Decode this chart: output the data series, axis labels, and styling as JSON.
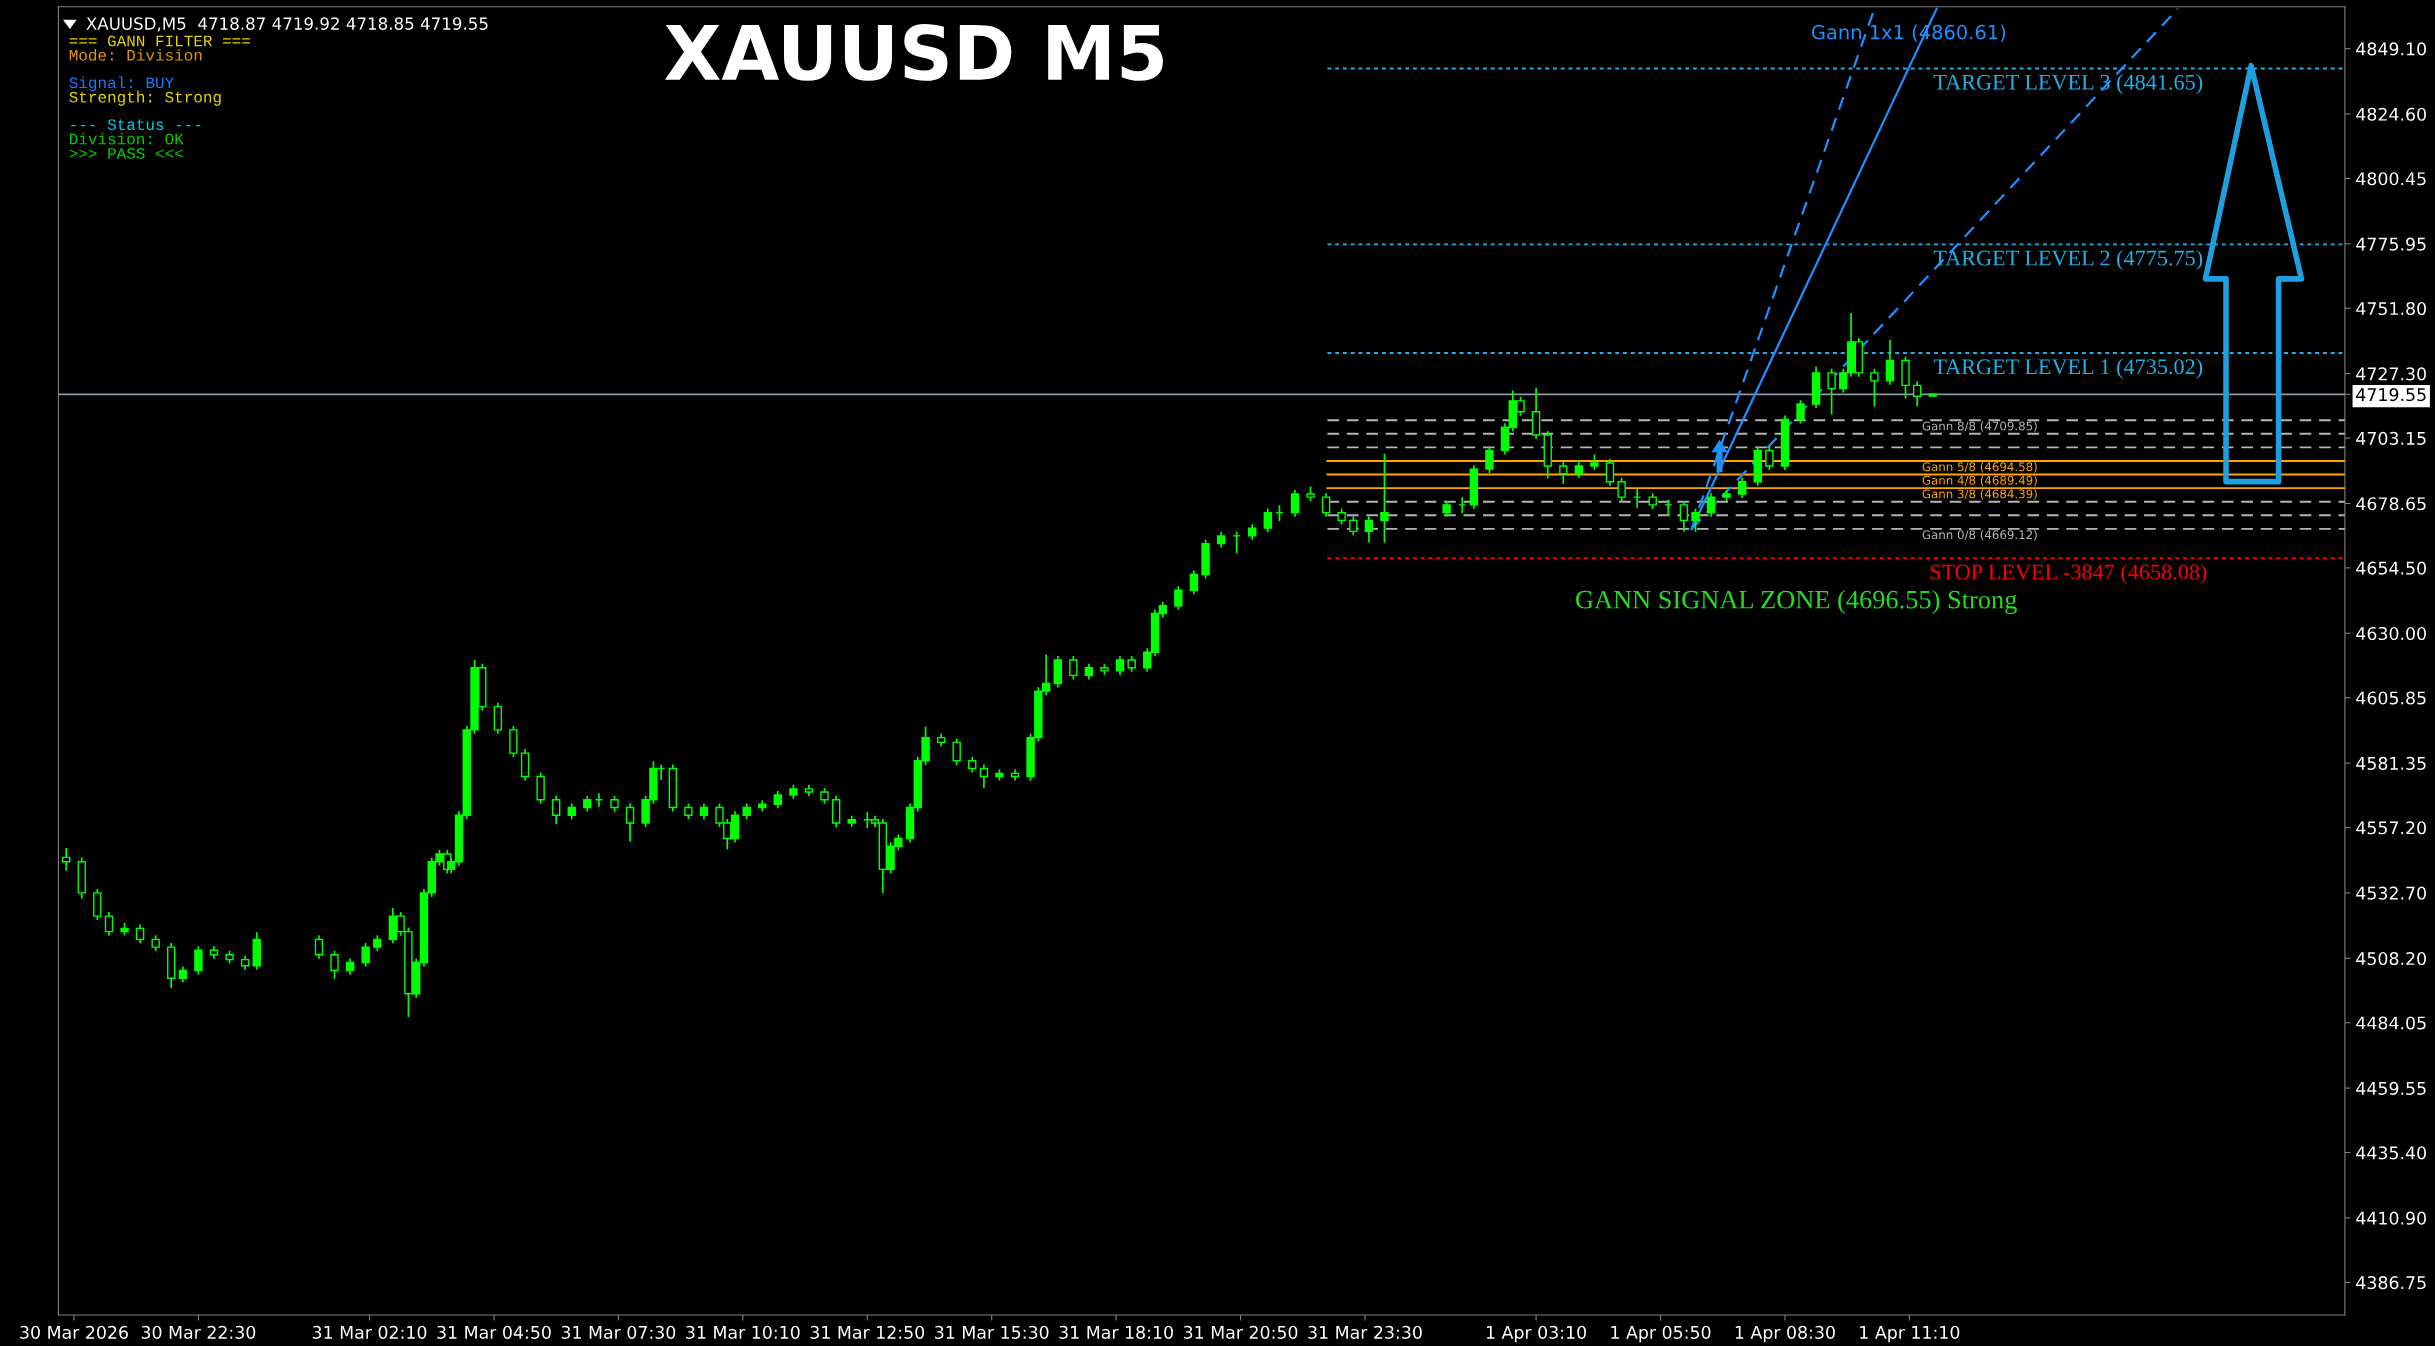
{
  "chart_data": {
    "type": "candlestick",
    "title": "XAUUSD M5",
    "series": [
      {
        "color": "#00ff00",
        "x": [
          "2026-03-30T19:40",
          "2026-03-30T20:00",
          "2026-03-30T20:20",
          "2026-03-30T20:35",
          "2026-03-30T20:55",
          "2026-03-30T21:15",
          "2026-03-30T21:35",
          "2026-03-30T21:55",
          "2026-03-30T22:10",
          "2026-03-30T22:30",
          "2026-03-30T22:50",
          "2026-03-30T23:10",
          "2026-03-30T23:30",
          "2026-03-30T23:45",
          "2026-03-31T01:05",
          "2026-03-31T01:25",
          "2026-03-31T01:45",
          "2026-03-31T02:05",
          "2026-03-31T02:20",
          "2026-03-31T02:40",
          "2026-03-31T02:50",
          "2026-03-31T03:00",
          "2026-03-31T03:10",
          "2026-03-31T03:20",
          "2026-03-31T03:30",
          "2026-03-31T03:40",
          "2026-03-31T03:50",
          "2026-03-31T03:55",
          "2026-03-31T04:05",
          "2026-03-31T04:15",
          "2026-03-31T04:25",
          "2026-03-31T04:35",
          "2026-03-31T04:55",
          "2026-03-31T05:15",
          "2026-03-31T05:30",
          "2026-03-31T05:50",
          "2026-03-31T06:10",
          "2026-03-31T06:30",
          "2026-03-31T06:50",
          "2026-03-31T07:05",
          "2026-03-31T07:25",
          "2026-03-31T07:45",
          "2026-03-31T08:05",
          "2026-03-31T08:15",
          "2026-03-31T08:25",
          "2026-03-31T08:40",
          "2026-03-31T09:00",
          "2026-03-31T09:20",
          "2026-03-31T09:40",
          "2026-03-31T09:50",
          "2026-03-31T10:00",
          "2026-03-31T10:15",
          "2026-03-31T10:35",
          "2026-03-31T10:55",
          "2026-03-31T11:15",
          "2026-03-31T11:35",
          "2026-03-31T11:55",
          "2026-03-31T12:10",
          "2026-03-31T12:30",
          "2026-03-31T12:50",
          "2026-03-31T13:00",
          "2026-03-31T13:10",
          "2026-03-31T13:20",
          "2026-03-31T13:30",
          "2026-03-31T13:45",
          "2026-03-31T13:55",
          "2026-03-31T14:05",
          "2026-03-31T14:25",
          "2026-03-31T14:45",
          "2026-03-31T15:05",
          "2026-03-31T15:20",
          "2026-03-31T15:40",
          "2026-03-31T16:00",
          "2026-03-31T16:20",
          "2026-03-31T16:30",
          "2026-03-31T16:40",
          "2026-03-31T16:55",
          "2026-03-31T17:15",
          "2026-03-31T17:35",
          "2026-03-31T17:55",
          "2026-03-31T18:15",
          "2026-03-31T18:30",
          "2026-03-31T18:50",
          "2026-03-31T19:00",
          "2026-03-31T19:10",
          "2026-03-31T19:30",
          "2026-03-31T19:50",
          "2026-03-31T20:05",
          "2026-03-31T20:25",
          "2026-03-31T20:45",
          "2026-03-31T21:05",
          "2026-03-31T21:25",
          "2026-03-31T21:40",
          "2026-03-31T22:00",
          "2026-03-31T22:20",
          "2026-03-31T22:40",
          "2026-03-31T23:00",
          "2026-03-31T23:15",
          "2026-03-31T23:35",
          "2026-03-31T23:55",
          "2026-04-01T01:15",
          "2026-04-01T01:35",
          "2026-04-01T01:50",
          "2026-04-01T02:10",
          "2026-04-01T02:30",
          "2026-04-01T02:40",
          "2026-04-01T02:50",
          "2026-04-01T03:10",
          "2026-04-01T03:25",
          "2026-04-01T03:45",
          "2026-04-01T04:05",
          "2026-04-01T04:25",
          "2026-04-01T04:45",
          "2026-04-01T05:00",
          "2026-04-01T05:20",
          "2026-04-01T05:40",
          "2026-04-01T06:00",
          "2026-04-01T06:20",
          "2026-04-01T06:35",
          "2026-04-01T06:55",
          "2026-04-01T07:15",
          "2026-04-01T07:35",
          "2026-04-01T07:55",
          "2026-04-01T08:10",
          "2026-04-01T08:30",
          "2026-04-01T08:50",
          "2026-04-01T09:10",
          "2026-04-01T09:30",
          "2026-04-01T09:45",
          "2026-04-01T09:55",
          "2026-04-01T10:05",
          "2026-04-01T10:25",
          "2026-04-01T10:45",
          "2026-04-01T11:05",
          "2026-04-01T11:20",
          "2026-04-01T11:40"
        ],
        "ohlc": [
          [
            4546.0,
            4549.5,
            4541.0,
            4544.4
          ],
          [
            4544.4,
            4546.0,
            4530.5,
            4532.7
          ],
          [
            4532.7,
            4534.2,
            4522.5,
            4524.0
          ],
          [
            4524.0,
            4525.5,
            4516.7,
            4518.2
          ],
          [
            4518.2,
            4521.5,
            4516.7,
            4519.4
          ],
          [
            4519.4,
            4520.9,
            4513.8,
            4515.3
          ],
          [
            4515.3,
            4516.8,
            4510.9,
            4512.4
          ],
          [
            4512.4,
            4513.9,
            4497.0,
            4500.7
          ],
          [
            4500.7,
            4505.1,
            4499.2,
            4503.6
          ],
          [
            4503.6,
            4512.7,
            4502.1,
            4511.2
          ],
          [
            4511.2,
            4512.7,
            4508.0,
            4509.5
          ],
          [
            4509.5,
            4511.0,
            4506.2,
            4507.7
          ],
          [
            4507.7,
            4509.2,
            4503.9,
            4505.4
          ],
          [
            4505.4,
            4518.0,
            4503.9,
            4515.3
          ],
          [
            4515.3,
            4516.8,
            4508.0,
            4509.5
          ],
          [
            4509.5,
            4511.0,
            4500.5,
            4503.6
          ],
          [
            4503.6,
            4508.1,
            4502.1,
            4506.6
          ],
          [
            4506.6,
            4513.9,
            4505.1,
            4512.4
          ],
          [
            4512.4,
            4516.8,
            4510.9,
            4515.3
          ],
          [
            4515.3,
            4527.0,
            4513.8,
            4524.0
          ],
          [
            4524.0,
            4525.5,
            4516.7,
            4518.2
          ],
          [
            4518.2,
            4519.7,
            4486.2,
            4494.9
          ],
          [
            4494.9,
            4508.1,
            4493.4,
            4506.6
          ],
          [
            4506.6,
            4534.2,
            4505.1,
            4532.7
          ],
          [
            4532.7,
            4545.9,
            4531.2,
            4544.4
          ],
          [
            4544.4,
            4548.8,
            4542.9,
            4547.3
          ],
          [
            4547.3,
            4548.8,
            4540.0,
            4541.5
          ],
          [
            4541.5,
            4545.9,
            4540.0,
            4544.4
          ],
          [
            4544.4,
            4563.3,
            4542.9,
            4561.8
          ],
          [
            4561.8,
            4595.3,
            4560.3,
            4593.8
          ],
          [
            4593.8,
            4620.0,
            4592.3,
            4617.1
          ],
          [
            4617.1,
            4618.6,
            4601.0,
            4602.5
          ],
          [
            4602.5,
            4604.0,
            4592.3,
            4593.8
          ],
          [
            4593.8,
            4595.3,
            4583.6,
            4585.1
          ],
          [
            4585.1,
            4586.6,
            4574.8,
            4576.3
          ],
          [
            4576.3,
            4577.8,
            4566.1,
            4567.6
          ],
          [
            4567.6,
            4569.1,
            4558.5,
            4561.8
          ],
          [
            4561.8,
            4566.2,
            4560.3,
            4564.7
          ],
          [
            4564.7,
            4569.1,
            4563.2,
            4567.6
          ],
          [
            4567.6,
            4570.0,
            4565.0,
            4567.6
          ],
          [
            4567.6,
            4569.1,
            4563.2,
            4564.7
          ],
          [
            4564.7,
            4566.2,
            4552.0,
            4558.9
          ],
          [
            4558.9,
            4569.1,
            4557.4,
            4567.6
          ],
          [
            4567.6,
            4582.0,
            4566.1,
            4579.3
          ],
          [
            4579.3,
            4580.8,
            4575.0,
            4579.3
          ],
          [
            4579.3,
            4580.8,
            4563.2,
            4564.7
          ],
          [
            4564.7,
            4566.2,
            4560.3,
            4561.8
          ],
          [
            4561.8,
            4566.2,
            4560.3,
            4564.7
          ],
          [
            4564.7,
            4566.2,
            4557.4,
            4558.9
          ],
          [
            4558.9,
            4560.4,
            4549.0,
            4553.1
          ],
          [
            4553.1,
            4563.3,
            4551.6,
            4561.8
          ],
          [
            4561.8,
            4566.2,
            4560.3,
            4564.7
          ],
          [
            4564.7,
            4567.4,
            4563.2,
            4565.9
          ],
          [
            4565.9,
            4570.9,
            4564.4,
            4569.4
          ],
          [
            4569.4,
            4573.2,
            4567.9,
            4571.7
          ],
          [
            4571.7,
            4573.2,
            4569.0,
            4570.5
          ],
          [
            4570.5,
            4572.0,
            4566.1,
            4567.6
          ],
          [
            4567.6,
            4569.1,
            4557.4,
            4558.9
          ],
          [
            4558.9,
            4561.6,
            4557.4,
            4560.1
          ],
          [
            4560.1,
            4563.0,
            4557.0,
            4560.1
          ],
          [
            4560.1,
            4561.6,
            4557.4,
            4558.9
          ],
          [
            4558.9,
            4560.4,
            4532.7,
            4541.5
          ],
          [
            4541.5,
            4551.7,
            4540.0,
            4550.2
          ],
          [
            4550.2,
            4554.6,
            4548.7,
            4553.1
          ],
          [
            4553.1,
            4566.2,
            4551.6,
            4564.7
          ],
          [
            4564.7,
            4583.7,
            4563.2,
            4582.2
          ],
          [
            4582.2,
            4595.0,
            4580.7,
            4590.9
          ],
          [
            4590.9,
            4592.4,
            4587.6,
            4589.1
          ],
          [
            4589.1,
            4590.6,
            4580.7,
            4582.2
          ],
          [
            4582.2,
            4583.7,
            4577.8,
            4579.3
          ],
          [
            4579.3,
            4580.8,
            4572.0,
            4576.3
          ],
          [
            4576.3,
            4579.0,
            4574.8,
            4577.5
          ],
          [
            4577.5,
            4579.0,
            4574.8,
            4576.3
          ],
          [
            4576.3,
            4592.4,
            4574.8,
            4590.9
          ],
          [
            4590.9,
            4609.8,
            4589.4,
            4608.3
          ],
          [
            4608.3,
            4622.0,
            4606.8,
            4611.2
          ],
          [
            4611.2,
            4621.5,
            4609.7,
            4620.0
          ],
          [
            4620.0,
            4621.5,
            4612.7,
            4614.2
          ],
          [
            4614.2,
            4618.6,
            4612.7,
            4617.1
          ],
          [
            4617.1,
            4618.6,
            4614.4,
            4615.9
          ],
          [
            4615.9,
            4621.5,
            4614.4,
            4620.0
          ],
          [
            4620.0,
            4621.5,
            4615.6,
            4617.1
          ],
          [
            4617.1,
            4624.4,
            4615.6,
            4622.9
          ],
          [
            4622.9,
            4638.9,
            4621.4,
            4637.4
          ],
          [
            4637.4,
            4641.8,
            4635.9,
            4640.3
          ],
          [
            4640.3,
            4647.6,
            4638.8,
            4646.1
          ],
          [
            4646.1,
            4653.5,
            4644.6,
            4652.0
          ],
          [
            4652.0,
            4665.1,
            4650.5,
            4663.6
          ],
          [
            4663.6,
            4668.0,
            4662.1,
            4666.5
          ],
          [
            4666.5,
            4668.0,
            4660.0,
            4666.5
          ],
          [
            4666.5,
            4670.9,
            4665.0,
            4669.4
          ],
          [
            4669.4,
            4676.7,
            4667.9,
            4675.2
          ],
          [
            4675.2,
            4678.0,
            4672.0,
            4675.2
          ],
          [
            4675.2,
            4683.7,
            4673.7,
            4682.2
          ],
          [
            4682.2,
            4685.0,
            4679.5,
            4681.0
          ],
          [
            4681.0,
            4682.5,
            4673.7,
            4675.2
          ],
          [
            4675.2,
            4676.7,
            4670.8,
            4672.3
          ],
          [
            4672.3,
            4673.8,
            4666.7,
            4668.2
          ],
          [
            4668.2,
            4673.8,
            4664.0,
            4672.3
          ],
          [
            4672.3,
            4697.3,
            4664.0,
            4675.2
          ],
          [
            4675.2,
            4679.6,
            4673.7,
            4678.1
          ],
          [
            4678.1,
            4681.0,
            4675.0,
            4678.1
          ],
          [
            4678.1,
            4693.0,
            4676.6,
            4691.5
          ],
          [
            4691.5,
            4700.0,
            4690.0,
            4698.5
          ],
          [
            4698.5,
            4708.7,
            4697.0,
            4707.2
          ],
          [
            4707.2,
            4721.0,
            4705.7,
            4717.1
          ],
          [
            4717.1,
            4718.6,
            4711.5,
            4713.0
          ],
          [
            4713.0,
            4722.0,
            4702.8,
            4704.3
          ],
          [
            4704.3,
            4705.8,
            4688.0,
            4692.7
          ],
          [
            4692.7,
            4694.2,
            4686.0,
            4689.8
          ],
          [
            4689.8,
            4695.0,
            4688.3,
            4692.7
          ],
          [
            4692.7,
            4697.0,
            4691.2,
            4693.8
          ],
          [
            4693.8,
            4695.3,
            4685.3,
            4686.8
          ],
          [
            4686.8,
            4688.3,
            4679.5,
            4681.0
          ],
          [
            4681.0,
            4684.0,
            4677.0,
            4681.0
          ],
          [
            4681.0,
            4682.5,
            4676.6,
            4678.1
          ],
          [
            4678.1,
            4680.0,
            4674.0,
            4678.1
          ],
          [
            4678.1,
            4679.6,
            4668.0,
            4672.3
          ],
          [
            4672.3,
            4676.7,
            4668.0,
            4675.2
          ],
          [
            4675.2,
            4682.5,
            4673.7,
            4681.0
          ],
          [
            4681.0,
            4683.7,
            4679.5,
            4682.2
          ],
          [
            4682.2,
            4688.3,
            4680.7,
            4686.8
          ],
          [
            4686.8,
            4700.0,
            4685.3,
            4698.5
          ],
          [
            4698.5,
            4700.0,
            4691.2,
            4692.7
          ],
          [
            4692.7,
            4711.6,
            4691.2,
            4710.1
          ],
          [
            4710.1,
            4717.4,
            4708.6,
            4715.9
          ],
          [
            4715.9,
            4730.0,
            4714.4,
            4727.6
          ],
          [
            4727.6,
            4729.1,
            4712.0,
            4721.7
          ],
          [
            4721.7,
            4729.1,
            4720.2,
            4727.6
          ],
          [
            4727.6,
            4750.0,
            4726.1,
            4739.2
          ],
          [
            4739.2,
            4740.7,
            4726.1,
            4727.6
          ],
          [
            4727.6,
            4729.1,
            4715.0,
            4724.6
          ],
          [
            4724.6,
            4740.0,
            4723.1,
            4732.2
          ],
          [
            4732.2,
            4733.7,
            4718.0,
            4722.9
          ],
          [
            4722.9,
            4724.4,
            4715.0,
            4718.8
          ],
          [
            4718.87,
            4719.92,
            4718.85,
            4719.55
          ]
        ]
      },
      {
        "type": "line",
        "name": "Gann 1x1 (4860.61)",
        "color": "#1e90ff",
        "line_style": "solid",
        "x": [
          "2026-04-01T06:30",
          "2026-04-01T11:45"
        ],
        "values": [
          4669.1,
          4864.0
        ]
      },
      {
        "type": "line",
        "color": "#1e90ff",
        "line_style": "dashed",
        "x": [
          "2026-04-01T06:30",
          "2026-04-01T10:25"
        ],
        "values": [
          4669.1,
          4864.0
        ]
      },
      {
        "type": "line",
        "color": "#1e90ff",
        "line_style": "dashed",
        "x": [
          "2026-04-01T06:30",
          "2026-04-01T16:55"
        ],
        "values": [
          4669.1,
          4864.0
        ]
      }
    ],
    "xlim": [
      "2026-03-30T19:30",
      "2026-04-01T20:30"
    ],
    "xticks": [
      {
        "value": "2026-03-30T19:50",
        "label": "30 Mar 2026"
      },
      {
        "value": "2026-03-30T22:30",
        "label": "30 Mar 22:30"
      },
      {
        "value": "2026-03-31T02:10",
        "label": "31 Mar 02:10"
      },
      {
        "value": "2026-03-31T04:50",
        "label": "31 Mar 04:50"
      },
      {
        "value": "2026-03-31T07:30",
        "label": "31 Mar 07:30"
      },
      {
        "value": "2026-03-31T10:10",
        "label": "31 Mar 10:10"
      },
      {
        "value": "2026-03-31T12:50",
        "label": "31 Mar 12:50"
      },
      {
        "value": "2026-03-31T15:30",
        "label": "31 Mar 15:30"
      },
      {
        "value": "2026-03-31T18:10",
        "label": "31 Mar 18:10"
      },
      {
        "value": "2026-03-31T20:50",
        "label": "31 Mar 20:50"
      },
      {
        "value": "2026-03-31T23:30",
        "label": "31 Mar 23:30"
      },
      {
        "value": "2026-04-01T03:10",
        "label": "1 Apr 03:10"
      },
      {
        "value": "2026-04-01T05:50",
        "label": "1 Apr 05:50"
      },
      {
        "value": "2026-04-01T08:30",
        "label": "1 Apr 08:30"
      },
      {
        "value": "2026-04-01T11:10",
        "label": "1 Apr 11:10"
      }
    ],
    "ylim": [
      4374.5,
      4864.8
    ],
    "yticks": [
      {
        "value": 4849.1,
        "label": "4849.10"
      },
      {
        "value": 4824.6,
        "label": "4824.60"
      },
      4800.45,
      4775.95,
      {
        "value": 4751.8,
        "label": "4751.80"
      },
      {
        "value": 4727.3,
        "label": "4727.30"
      },
      4719.55,
      4703.15,
      4678.65,
      {
        "value": 4654.5,
        "label": "4654.50"
      },
      {
        "value": 4630,
        "label": "4630.00"
      },
      4605.85,
      4581.35,
      {
        "value": 4557.2,
        "label": "4557.20"
      },
      {
        "value": 4532.7,
        "label": "4532.70"
      },
      {
        "value": 4508.2,
        "label": "4508.20"
      },
      4484.05,
      4459.55,
      {
        "value": 4435.4,
        "label": "4435.40"
      },
      {
        "value": 4410.9,
        "label": "4410.90"
      },
      4386.75
    ],
    "ref_lines": [
      {
        "axis": "y",
        "value": 4841.65,
        "label": "TARGET LEVEL 3 (4841.65)",
        "color": "#1fb0e8",
        "line_style": "dotted"
      },
      {
        "axis": "y",
        "value": 4775.75,
        "label": "TARGET LEVEL 2 (4775.75)",
        "color": "#1fb0e8",
        "line_style": "dotted"
      },
      {
        "axis": "y",
        "value": 4735.02,
        "label": "TARGET LEVEL 1 (4735.02)",
        "color": "#1fb0e8",
        "line_style": "dotted"
      },
      {
        "axis": "y",
        "value": 4719.55,
        "color": "#8c9aa8",
        "line_style": "solid"
      },
      {
        "axis": "y",
        "value": 4709.85,
        "label": "Gann 8/8 (4709.85)",
        "color": "#b4b4b4",
        "line_style": "dashed"
      },
      {
        "axis": "y",
        "value": 4704.76,
        "color": "#b4b4b4",
        "line_style": "dashed"
      },
      {
        "axis": "y",
        "value": 4699.67,
        "color": "#b4b4b4",
        "line_style": "dashed"
      },
      {
        "axis": "y",
        "value": 4694.58,
        "label": "Gann 5/8 (4694.58)",
        "color": "#ffa500",
        "line_style": "solid"
      },
      {
        "axis": "y",
        "value": 4689.49,
        "label": "Gann 4/8 (4689.49)",
        "color": "#ffa500",
        "line_style": "solid"
      },
      {
        "axis": "y",
        "value": 4684.39,
        "label": "Gann 3/8 (4684.39)",
        "color": "#ffa500",
        "line_style": "solid"
      },
      {
        "axis": "y",
        "value": 4679.3,
        "color": "#b4b4b4",
        "line_style": "dashed"
      },
      {
        "axis": "y",
        "value": 4674.21,
        "color": "#b4b4b4",
        "line_style": "dashed"
      },
      {
        "axis": "y",
        "value": 4669.12,
        "label": "Gann 0/8 (4669.12)",
        "color": "#b4b4b4",
        "line_style": "dashed"
      },
      {
        "axis": "y",
        "value": 4658.08,
        "label": "STOP LEVEL -3847 (4658.08)",
        "color": "#ff0000",
        "line_style": "dotted"
      }
    ],
    "annotations": [
      "XAUUSD,M5  4718.87 4719.92 4718.85 4719.55",
      "=== GANN FILTER ===",
      "Mode: Division",
      "Signal: BUY",
      "Strength: Strong",
      "--- Status ---",
      "Division: OK",
      ">>> PASS <<<",
      "GANN SIGNAL ZONE (4696.55) Strong"
    ],
    "grid": false,
    "legend": false
  }
}
